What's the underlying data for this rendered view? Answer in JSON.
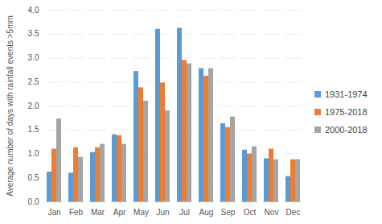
{
  "chart_data": {
    "type": "bar",
    "y_label": "Average number of days with rainfall events >5mm",
    "categories": [
      "Jan",
      "Feb",
      "Mar",
      "Apr",
      "May",
      "Jun",
      "Jul",
      "Aug",
      "Sep",
      "Oct",
      "Nov",
      "Dec"
    ],
    "series": [
      {
        "name": "1931-1974",
        "color": "#5b9bd5",
        "values": [
          0.62,
          0.6,
          1.03,
          1.4,
          2.72,
          3.6,
          3.62,
          2.78,
          1.63,
          1.08,
          0.9,
          0.53
        ]
      },
      {
        "name": "1975-2018",
        "color": "#ed7d31",
        "values": [
          1.1,
          1.13,
          1.13,
          1.38,
          2.38,
          2.48,
          2.95,
          2.62,
          1.55,
          1.0,
          1.1,
          0.88
        ]
      },
      {
        "name": "2000-2018",
        "color": "#a5a5a5",
        "values": [
          1.73,
          0.93,
          1.2,
          1.2,
          2.1,
          1.9,
          2.88,
          2.78,
          1.77,
          1.15,
          0.88,
          0.88
        ]
      }
    ],
    "ylim": [
      0,
      4
    ],
    "yticks": [
      0,
      0.5,
      1,
      1.5,
      2,
      2.5,
      3,
      3.5,
      4
    ],
    "grid": true,
    "legend": "right"
  }
}
